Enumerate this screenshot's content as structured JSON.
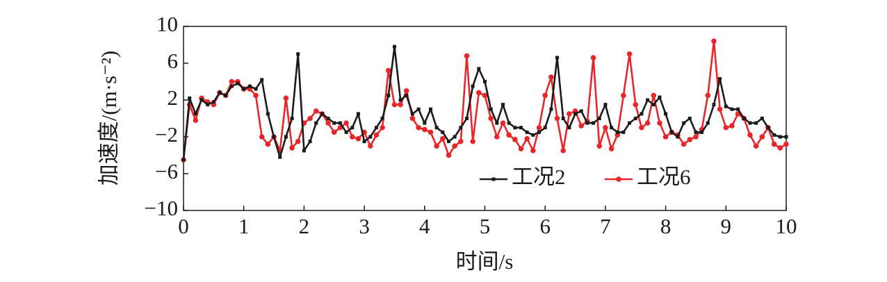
{
  "chart_data": {
    "type": "line",
    "xlabel": "时间/s",
    "ylabel": "加速度/(m·s⁻²)",
    "x": [
      0,
      0.1,
      0.2,
      0.3,
      0.4,
      0.5,
      0.6,
      0.7,
      0.8,
      0.9,
      1,
      1.1,
      1.2,
      1.3,
      1.4,
      1.5,
      1.6,
      1.7,
      1.8,
      1.9,
      2,
      2.1,
      2.2,
      2.3,
      2.4,
      2.5,
      2.6,
      2.7,
      2.8,
      2.9,
      3,
      3.1,
      3.2,
      3.3,
      3.4,
      3.5,
      3.6,
      3.7,
      3.8,
      3.9,
      4,
      4.1,
      4.2,
      4.3,
      4.4,
      4.5,
      4.6,
      4.7,
      4.8,
      4.9,
      5,
      5.1,
      5.2,
      5.3,
      5.4,
      5.5,
      5.6,
      5.7,
      5.8,
      5.9,
      6,
      6.1,
      6.2,
      6.3,
      6.4,
      6.5,
      6.6,
      6.7,
      6.8,
      6.9,
      7,
      7.1,
      7.2,
      7.3,
      7.4,
      7.5,
      7.6,
      7.7,
      7.8,
      7.9,
      8,
      8.1,
      8.2,
      8.3,
      8.4,
      8.5,
      8.6,
      8.7,
      8.8,
      8.9,
      9,
      9.1,
      9.2,
      9.3,
      9.4,
      9.5,
      9.6,
      9.7,
      9.8,
      9.9,
      10
    ],
    "series": [
      {
        "name": "工况2",
        "color": "#1a1a1a",
        "marker": "square",
        "values": [
          -4.5,
          2.2,
          0.5,
          2,
          1.5,
          1.8,
          2.8,
          2.5,
          3.5,
          3.8,
          3.2,
          3.5,
          3.2,
          4.2,
          0.5,
          -2,
          -4.2,
          -2,
          0,
          7,
          -3.5,
          -2.5,
          -0.5,
          0.5,
          0,
          -0.5,
          -0.5,
          -1.5,
          -1,
          0.5,
          -2.5,
          -2,
          -1,
          0,
          2.5,
          7.8,
          2,
          2.5,
          0.5,
          1,
          -0.5,
          1,
          -1,
          -1.5,
          -2.5,
          -2,
          -1,
          0,
          3.5,
          5.4,
          4,
          1,
          -0.5,
          1.5,
          -0.5,
          -1,
          -1,
          -1.5,
          -1.8,
          -1.5,
          -1,
          1,
          6.6,
          0,
          -1,
          0.5,
          0.8,
          -0.5,
          -0.5,
          0,
          1.5,
          -1,
          -1.5,
          -1.5,
          -0.5,
          0,
          0.5,
          2,
          1.5,
          2.3,
          0.5,
          -1.5,
          -2,
          -0.5,
          0,
          -1.5,
          -1.5,
          -0.5,
          1.5,
          4.3,
          1.3,
          1,
          1,
          0,
          -0.5,
          -0.5,
          0,
          -1,
          -1.8,
          -2,
          -2
        ]
      },
      {
        "name": "工况6",
        "color": "#e8262a",
        "marker": "circle",
        "values": [
          -4.5,
          1.5,
          -0.2,
          2.2,
          1.8,
          1.5,
          2.8,
          2.5,
          4,
          4,
          3.2,
          3.2,
          2.5,
          -2,
          -2.8,
          -2,
          -3.5,
          2.2,
          -3.2,
          -2.5,
          -0.5,
          0,
          0.8,
          0.5,
          -0.5,
          -1.5,
          -1,
          -0.5,
          -2,
          -2.2,
          -1.5,
          -3,
          -1.8,
          -1,
          5.2,
          1.5,
          1.5,
          3,
          0,
          -1,
          -1.2,
          -1.5,
          -3,
          -2.2,
          -4,
          -3,
          -2.5,
          6.8,
          -2.5,
          2.8,
          2.5,
          0,
          -2,
          -0.5,
          -1.8,
          -2.3,
          -3.3,
          -2.2,
          -3.5,
          -1,
          2.5,
          4.5,
          0,
          -3.5,
          0.5,
          0.8,
          -0.8,
          -0.3,
          6.6,
          -3,
          -1,
          -3.3,
          -1.8,
          2.5,
          7,
          1.5,
          -1,
          -0.5,
          2.5,
          -0.5,
          -2,
          -1.5,
          -1.8,
          -2.8,
          -2.3,
          -2,
          -1.2,
          2.5,
          8.4,
          1,
          -1,
          -0.8,
          0.5,
          0,
          -1.8,
          -3,
          -2,
          -1,
          -2.8,
          -3.2,
          -2.8
        ]
      }
    ],
    "xlim": [
      0,
      10
    ],
    "xticks": [
      0,
      1,
      2,
      3,
      4,
      5,
      6,
      7,
      8,
      9,
      10
    ],
    "ylim": [
      -10,
      10
    ],
    "yticks": [
      {
        "value": -10,
        "label": "−10"
      },
      {
        "value": -6,
        "label": "−6"
      },
      {
        "value": -2,
        "label": "−2"
      },
      2,
      6,
      10
    ],
    "legend": "lower right",
    "grid": false
  }
}
